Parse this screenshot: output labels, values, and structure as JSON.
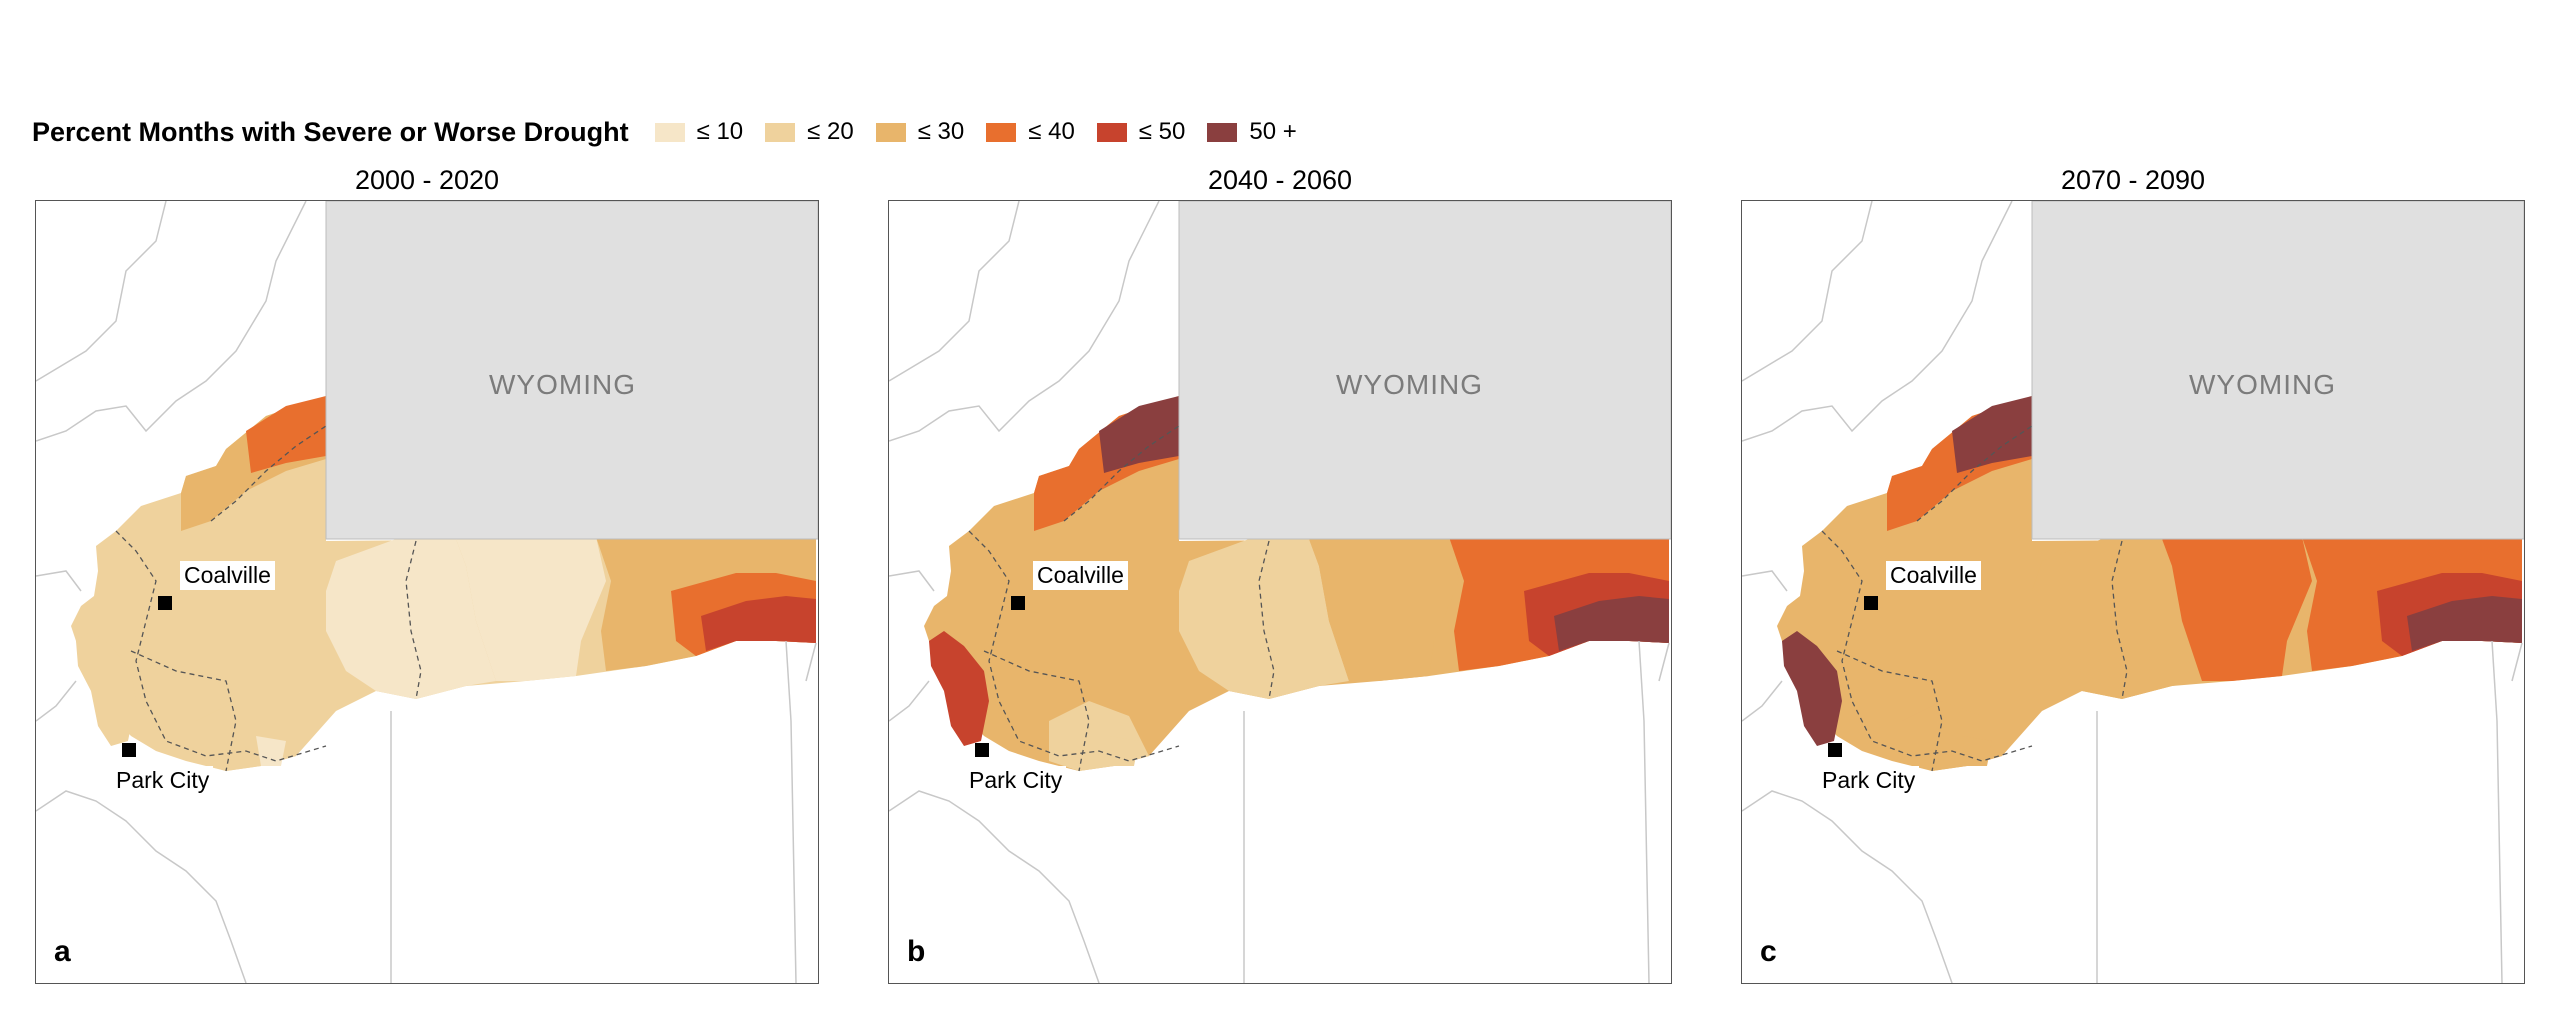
{
  "legend": {
    "title": "Percent Months with Severe or Worse Drought",
    "items": [
      {
        "label": "≤ 10",
        "color": "#f6e6c8"
      },
      {
        "label": "≤ 20",
        "color": "#efd29d"
      },
      {
        "label": "≤ 30",
        "color": "#e8b56b"
      },
      {
        "label": "≤ 40",
        "color": "#e86f2e"
      },
      {
        "label": "≤ 50",
        "color": "#c7432d"
      },
      {
        "label": "50 +",
        "color": "#8a3f3f"
      }
    ]
  },
  "region_label": "WYOMING",
  "colors": {
    "wyoming_fill": "#e0e0e0",
    "boundary_line": "#c8c8c8",
    "frame": "#555555"
  },
  "panels": [
    {
      "title": "2000 - 2020",
      "letter": "a",
      "zones": {
        "west": 2,
        "central": 2,
        "middle": 1,
        "east": 1,
        "northwest": 3,
        "north": 4,
        "south": 2,
        "southpatch": 1,
        "eastedge": 3,
        "eastcore": 4,
        "eastinner": 5,
        "parkcity": 2
      }
    },
    {
      "title": "2040 - 2060",
      "letter": "b",
      "zones": {
        "west": 3,
        "central": 3,
        "middle": 2,
        "east": 3,
        "northwest": 4,
        "north": 6,
        "south": 2,
        "southpatch": 2,
        "eastedge": 4,
        "eastcore": 5,
        "eastinner": 6,
        "parkcity": 5
      }
    },
    {
      "title": "2070 - 2090",
      "letter": "c",
      "zones": {
        "west": 4,
        "central": 3,
        "middle": 3,
        "east": 4,
        "northwest": 4,
        "north": 6,
        "south": 3,
        "southpatch": 3,
        "eastedge": 4,
        "eastcore": 5,
        "eastinner": 6,
        "parkcity": 6
      }
    }
  ],
  "cities": [
    {
      "name": "Coalville"
    },
    {
      "name": "Park City"
    }
  ]
}
